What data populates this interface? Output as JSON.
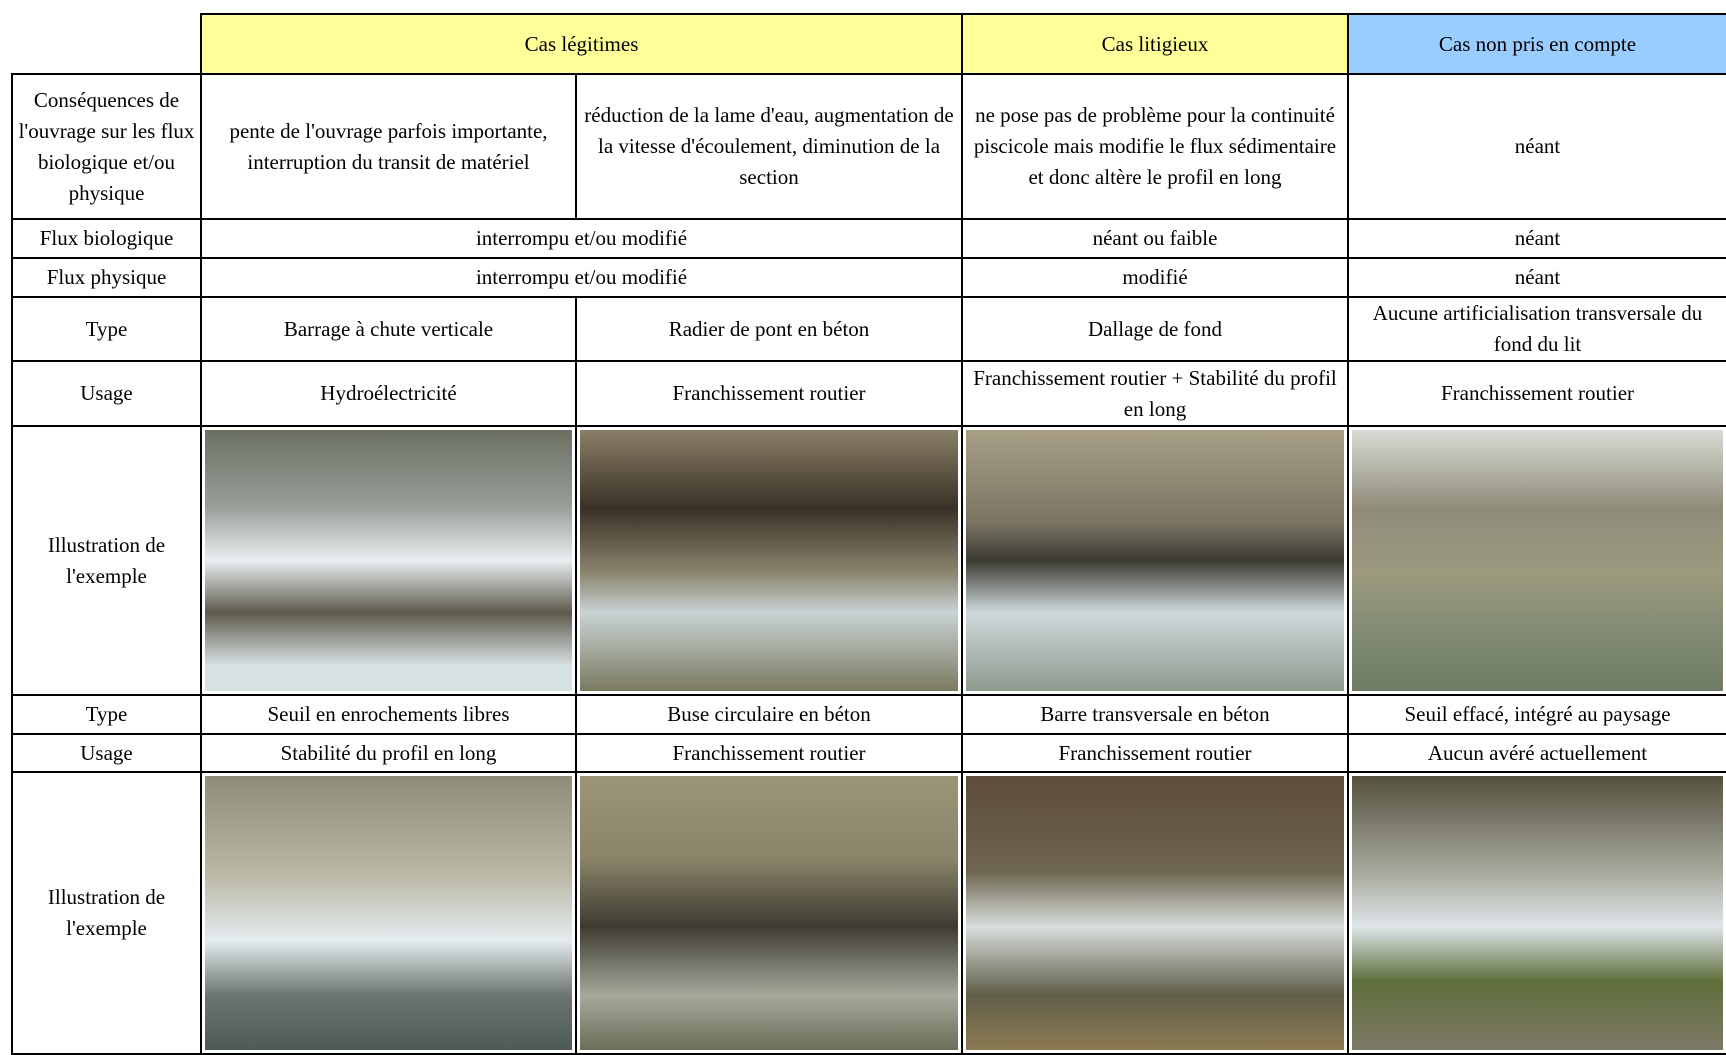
{
  "header": {
    "columns": [
      "Cas légitimes",
      "Cas litigieux",
      "Cas non pris en compte"
    ]
  },
  "table": {
    "rows": [
      [
        "Conséquences de l'ouvrage sur les flux biologique et/ou physique",
        "pente de l'ouvrage parfois importante, interruption du transit de matériel",
        "réduction de la lame d'eau, augmentation de la vitesse d'écoulement, diminution de la section",
        "ne pose pas de problème pour la continuité piscicole mais modifie le flux sédimentaire et donc altère le profil en long",
        "néant"
      ],
      [
        "Flux biologique",
        "interrompu et/ou modifié",
        "néant ou faible",
        "néant"
      ],
      [
        "Flux physique",
        "interrompu et/ou modifié",
        "modifié",
        "néant"
      ],
      [
        "Type",
        "Barrage à chute verticale",
        "Radier de pont en béton",
        "Dallage de fond",
        "Aucune artificialisation transversale du fond du lit"
      ],
      [
        "Usage",
        "Hydroélectricité",
        "Franchissement routier",
        "Franchissement routier + Stabilité du profil en long",
        "Franchissement routier"
      ],
      [
        "Illustration de l'exemple"
      ],
      [
        "Type",
        "Seuil en enrochements libres",
        "Buse circulaire en béton",
        "Barre transversale en béton",
        "Seuil effacé, intégré au paysage"
      ],
      [
        "Usage",
        "Stabilité du profil en long",
        "Franchissement routier",
        "Franchissement routier",
        "Aucun avéré actuellement"
      ],
      [
        "Illustration de l'exemple"
      ]
    ]
  }
}
